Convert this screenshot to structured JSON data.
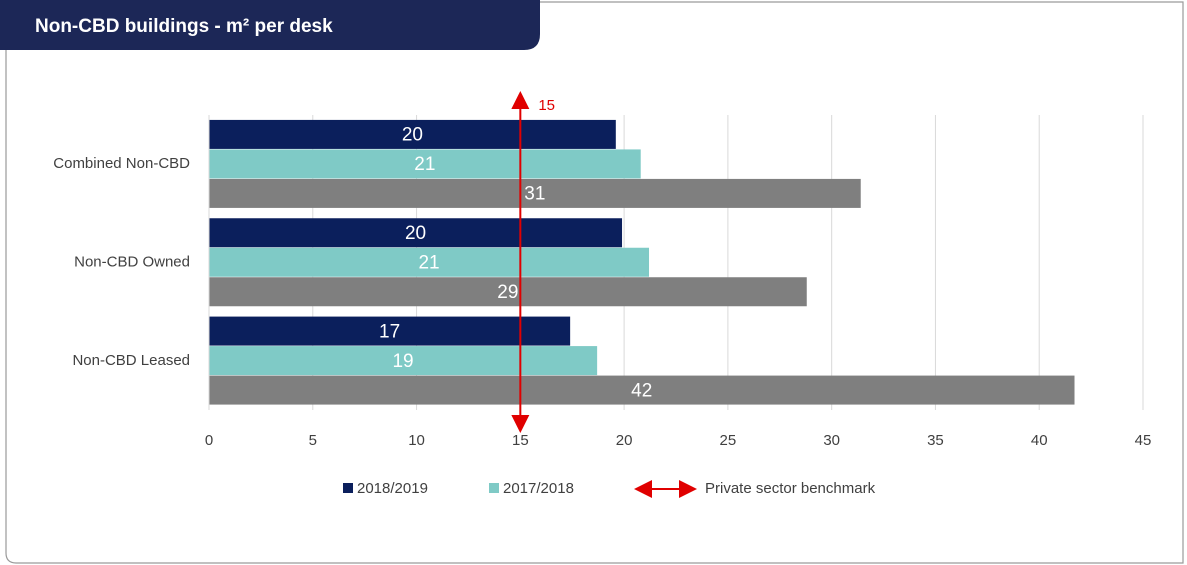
{
  "chart_data": {
    "type": "bar",
    "orientation": "horizontal",
    "title": "Non-CBD buildings - m² per desk",
    "categories": [
      "Combined Non-CBD",
      "Non-CBD Owned",
      "Non-CBD Leased"
    ],
    "series": [
      {
        "name": "2018/2019",
        "color": "#0b1f5c",
        "values": [
          19.6,
          19.9,
          17.4
        ],
        "value_labels": [
          "20",
          "20",
          "17"
        ]
      },
      {
        "name": "2017/2018",
        "color": "#7fcac6",
        "values": [
          20.8,
          21.2,
          18.7
        ],
        "value_labels": [
          "21",
          "21",
          "19"
        ]
      },
      {
        "color": "#7f7f7f",
        "values": [
          31.4,
          28.8,
          41.7
        ],
        "value_labels": [
          "31",
          "29",
          "42"
        ]
      }
    ],
    "xlim": [
      0,
      45
    ],
    "xticks": [
      0,
      5,
      10,
      15,
      20,
      25,
      30,
      35,
      40,
      45
    ],
    "grid": true,
    "benchmark": {
      "name": "Private sector benchmark",
      "value": 15,
      "color": "#e00000"
    }
  }
}
